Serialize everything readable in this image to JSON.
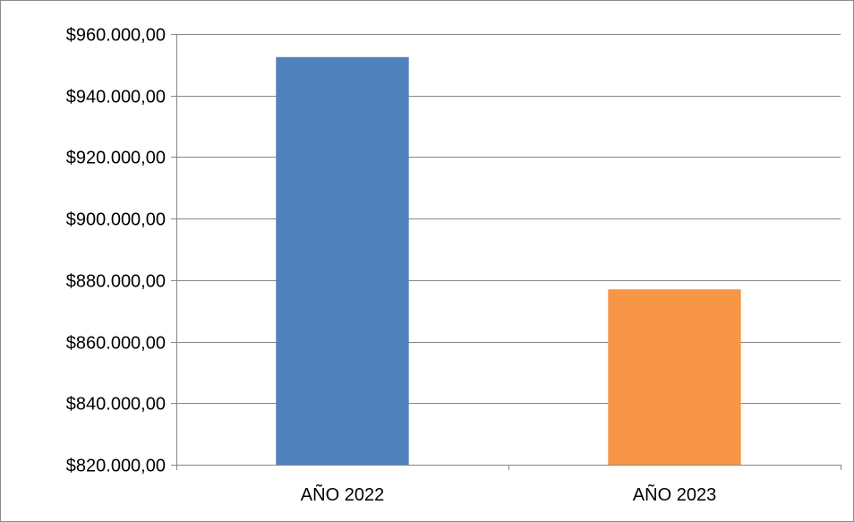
{
  "chart_data": {
    "type": "bar",
    "title": "",
    "xlabel": "",
    "ylabel": "",
    "categories": [
      "AÑO 2022",
      "AÑO 2023"
    ],
    "values": [
      952500,
      877000
    ],
    "colors": [
      "#4f81bd",
      "#f79646"
    ],
    "ylim": [
      820000,
      960000
    ],
    "yticks": [
      820000,
      840000,
      860000,
      880000,
      900000,
      920000,
      940000,
      960000
    ],
    "ytick_labels": [
      "$820.000,00",
      "$840.000,00",
      "$860.000,00",
      "$880.000,00",
      "$900.000,00",
      "$920.000,00",
      "$940.000,00",
      "$960.000,00"
    ],
    "grid": true,
    "legend": "none",
    "gridline_color": "#868686",
    "axis_color": "#868686"
  }
}
